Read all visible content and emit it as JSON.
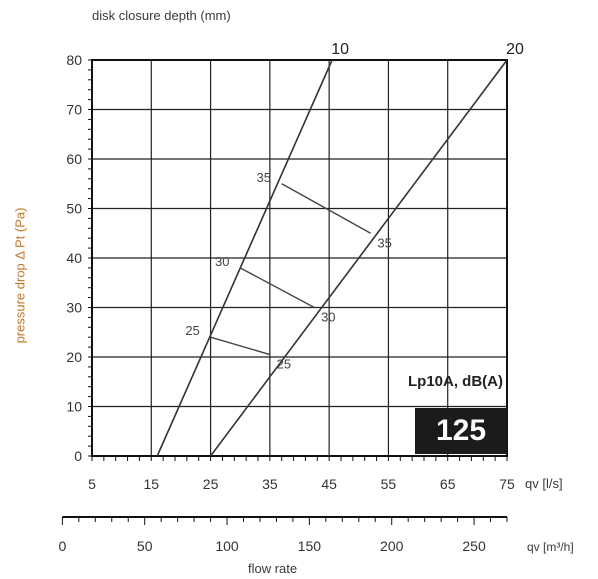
{
  "chart_data": {
    "type": "line",
    "title": "disk closure depth (mm)",
    "ylabel": "pressure drop  Δ Pt (Pa)",
    "xlabel": "flow rate",
    "x_unit_primary": "qv [l/s]",
    "x_unit_secondary": "qv [m³/h]",
    "xlim": [
      5,
      75
    ],
    "ylim": [
      0,
      80
    ],
    "x_ticks": [
      "5",
      "15",
      "25",
      "35",
      "45",
      "55",
      "65",
      "75"
    ],
    "y_ticks": [
      "0",
      "10",
      "20",
      "30",
      "40",
      "50",
      "60",
      "70",
      "80"
    ],
    "x2_ticks": [
      "0",
      "50",
      "100",
      "150",
      "200",
      "250"
    ],
    "grid": true,
    "series": [
      {
        "name": "10",
        "points": [
          [
            16,
            0
          ],
          [
            45.5,
            80
          ]
        ]
      },
      {
        "name": "20",
        "points": [
          [
            25,
            0
          ],
          [
            75,
            80
          ]
        ]
      }
    ],
    "contours": [
      {
        "name": "25",
        "points": [
          [
            25,
            24
          ],
          [
            35,
            20.5
          ]
        ],
        "label_a": "25",
        "label_b": "25"
      },
      {
        "name": "30",
        "points": [
          [
            30,
            38
          ],
          [
            42.5,
            30
          ]
        ],
        "label_a": "30",
        "label_b": "30"
      },
      {
        "name": "35",
        "points": [
          [
            37,
            55
          ],
          [
            52,
            45
          ]
        ],
        "label_a": "35",
        "label_b": "35"
      }
    ],
    "legend_title": "Lp10A, dB(A)",
    "badge_value": "125"
  }
}
